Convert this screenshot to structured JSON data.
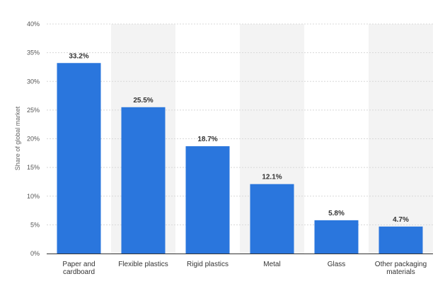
{
  "chart_data": {
    "type": "bar",
    "categories": [
      [
        "Paper and",
        "cardboard"
      ],
      [
        "Flexible plastics"
      ],
      [
        "Rigid plastics"
      ],
      [
        "Metal"
      ],
      [
        "Glass"
      ],
      [
        "Other packaging",
        "materials"
      ]
    ],
    "values": [
      33.2,
      25.5,
      18.7,
      12.1,
      5.8,
      4.7
    ],
    "data_labels": [
      "33.2%",
      "25.5%",
      "18.7%",
      "12.1%",
      "5.8%",
      "4.7%"
    ],
    "ylabel": "Share of global market",
    "ylim": [
      0,
      40
    ],
    "yticks": [
      0,
      5,
      10,
      15,
      20,
      25,
      30,
      35,
      40
    ],
    "ytick_labels": [
      "0%",
      "5%",
      "10%",
      "15%",
      "20%",
      "25%",
      "30%",
      "35%",
      "40%"
    ],
    "grid": true,
    "colors": {
      "bar": "#2a76dd",
      "band": "#f3f3f3",
      "grid": "#d8d8d8",
      "axis": "#333333"
    }
  }
}
